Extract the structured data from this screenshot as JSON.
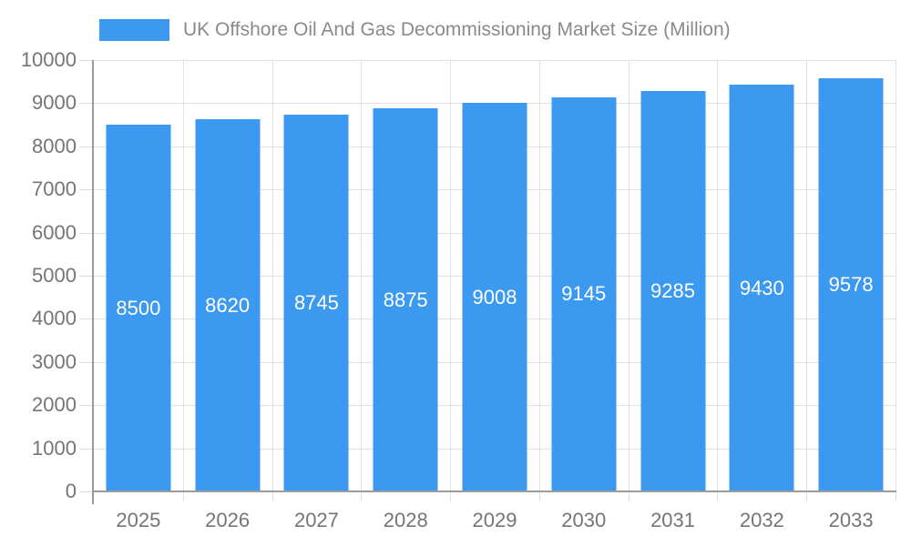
{
  "legend": {
    "label": "UK Offshore Oil And Gas Decommissioning Market Size (Million)"
  },
  "chart_data": {
    "type": "bar",
    "title": "UK Offshore Oil And Gas Decommissioning Market Size (Million)",
    "categories": [
      "2025",
      "2026",
      "2027",
      "2028",
      "2029",
      "2030",
      "2031",
      "2032",
      "2033"
    ],
    "values": [
      8500,
      8620,
      8745,
      8875,
      9008,
      9145,
      9285,
      9430,
      9578
    ],
    "xlabel": "",
    "ylabel": "",
    "ylim": [
      0,
      10000
    ],
    "yticks": [
      0,
      1000,
      2000,
      3000,
      4000,
      5000,
      6000,
      7000,
      8000,
      9000,
      10000
    ],
    "grid": true,
    "legend_position": "top",
    "value_labels": "inside-center"
  },
  "colors": {
    "bar": "#3B99EF",
    "grid": "#E2E2E2",
    "axis": "#9B9B9B",
    "tick": "#DCDCDC",
    "axis_label": "#757575",
    "title_text": "#8A8A8A",
    "bar_label": "#FFFFFF",
    "background": "#FFFFFF"
  }
}
